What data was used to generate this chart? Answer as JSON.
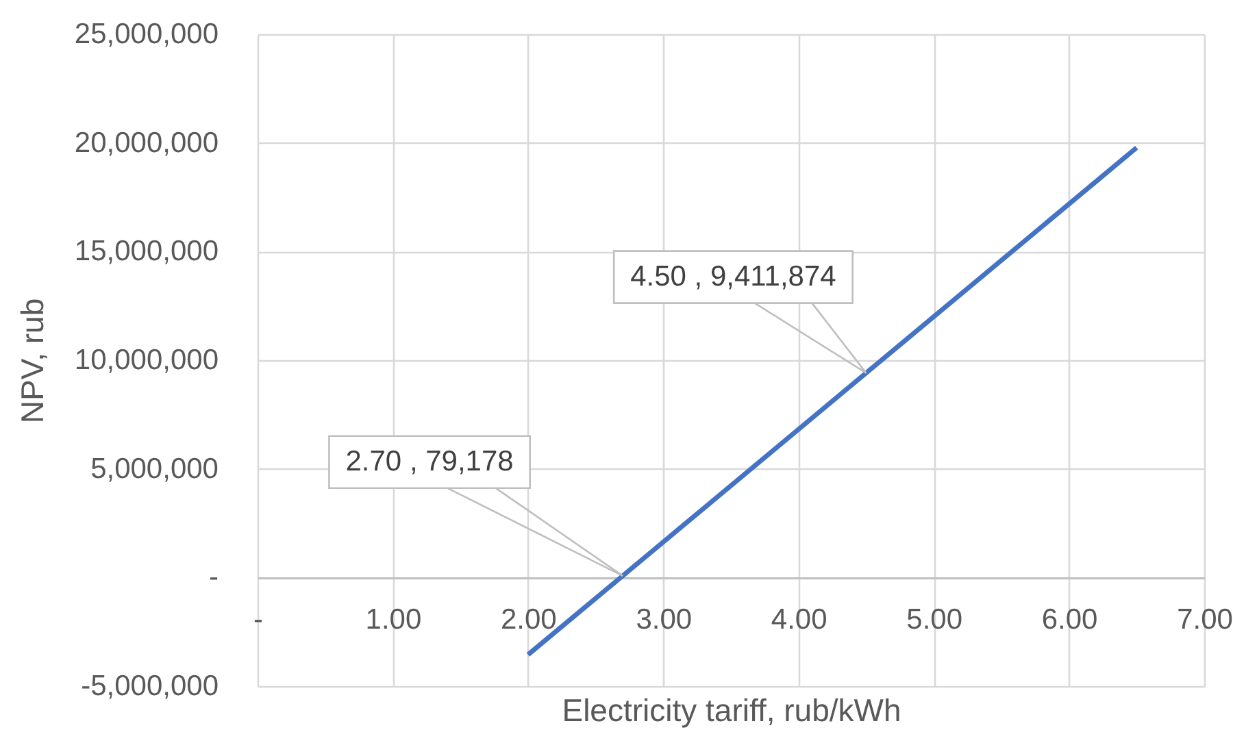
{
  "chart_data": {
    "type": "line",
    "xlabel": "Electricity tariff, rub/kWh",
    "ylabel": "NPV, rub",
    "x": [
      2,
      2.7,
      4.5,
      6.5
    ],
    "series": [
      {
        "color": "#4472c4",
        "values": [
          -3550000,
          79178,
          9411874,
          19780000
        ]
      }
    ],
    "xlim": [
      0,
      7
    ],
    "ylim": [
      -5000000,
      25000000
    ],
    "xticks": [
      {
        "value": 0,
        "label": "-"
      },
      {
        "value": 1,
        "label": "1.00"
      },
      {
        "value": 2,
        "label": "2.00"
      },
      {
        "value": 3,
        "label": "3.00"
      },
      {
        "value": 4,
        "label": "4.00"
      },
      {
        "value": 5,
        "label": "5.00"
      },
      {
        "value": 6,
        "label": "6.00"
      },
      {
        "value": 7,
        "label": "7.00"
      }
    ],
    "yticks": [
      {
        "value": -5000000,
        "label": "-5,000,000"
      },
      {
        "value": 0,
        "label": "-"
      },
      {
        "value": 5000000,
        "label": "5,000,000"
      },
      {
        "value": 10000000,
        "label": "10,000,000"
      },
      {
        "value": 15000000,
        "label": "15,000,000"
      },
      {
        "value": 20000000,
        "label": "20,000,000"
      },
      {
        "value": 25000000,
        "label": "25,000,000"
      }
    ],
    "grid": true,
    "annotations": [
      {
        "text": "2.70 , 79,178",
        "x": 2.7,
        "y": 79178
      },
      {
        "text": "4.50 , 9,411,874",
        "x": 4.5,
        "y": 9411874
      }
    ]
  }
}
